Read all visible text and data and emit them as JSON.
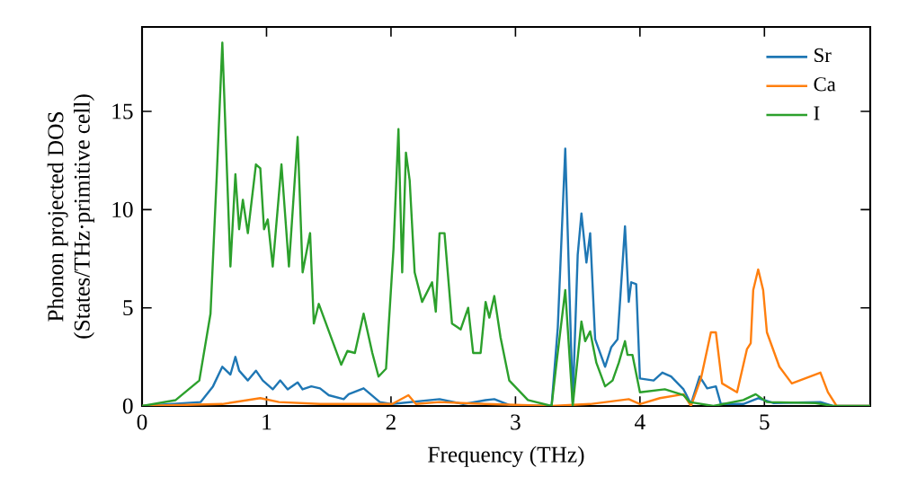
{
  "chart_data": {
    "type": "line",
    "xlabel": "Frequency (THz)",
    "ylabel": "Phonon projected DOS\n(States/THz·primitive cell)",
    "xlim": [
      0,
      5.85
    ],
    "ylim": [
      0,
      19.3
    ],
    "xticks": [
      0,
      1,
      2,
      3,
      4,
      5
    ],
    "yticks": [
      0,
      5,
      10,
      15
    ],
    "legend": "top right",
    "line_style": "solid",
    "series": [
      {
        "name": "Sr",
        "color": "#1f77b4",
        "x": [
          0,
          0.47,
          0.57,
          0.645,
          0.71,
          0.75,
          0.78,
          0.85,
          0.915,
          0.97,
          1.05,
          1.11,
          1.17,
          1.25,
          1.29,
          1.36,
          1.43,
          1.5,
          1.62,
          1.66,
          1.78,
          1.91,
          2.01,
          2.39,
          2.58,
          2.76,
          2.83,
          2.95,
          3.29,
          3.34,
          3.4,
          3.46,
          3.5,
          3.53,
          3.57,
          3.6,
          3.64,
          3.72,
          3.77,
          3.82,
          3.88,
          3.91,
          3.93,
          3.97,
          4.0,
          4.11,
          4.18,
          4.25,
          4.35,
          4.41,
          4.48,
          4.54,
          4.61,
          4.65,
          4.83,
          4.95,
          5.07,
          5.45,
          5.55,
          5.85
        ],
        "values": [
          0,
          0.2,
          1.0,
          2.0,
          1.6,
          2.5,
          1.8,
          1.3,
          1.8,
          1.3,
          0.85,
          1.3,
          0.85,
          1.2,
          0.85,
          1.0,
          0.9,
          0.55,
          0.35,
          0.6,
          0.9,
          0.2,
          0.1,
          0.35,
          0.1,
          0.3,
          0.35,
          0.05,
          0,
          4.0,
          13.1,
          0.2,
          7.7,
          9.8,
          7.3,
          8.8,
          3.4,
          2.0,
          3.0,
          3.4,
          9.15,
          5.3,
          6.3,
          6.2,
          1.4,
          1.3,
          1.7,
          1.5,
          0.85,
          0.1,
          1.5,
          0.9,
          1.0,
          0.1,
          0.1,
          0.4,
          0.15,
          0.2,
          0,
          0
        ]
      },
      {
        "name": "Ca",
        "color": "#ff7f0e",
        "x": [
          0,
          0.645,
          0.95,
          1.1,
          1.43,
          2.01,
          2.14,
          2.2,
          2.39,
          2.76,
          3.29,
          3.6,
          3.91,
          4.0,
          4.16,
          4.35,
          4.41,
          4.49,
          4.57,
          4.61,
          4.66,
          4.78,
          4.86,
          4.89,
          4.91,
          4.95,
          4.99,
          5.02,
          5.12,
          5.22,
          5.45,
          5.51,
          5.58,
          5.85
        ],
        "values": [
          0,
          0.1,
          0.4,
          0.2,
          0.1,
          0.1,
          0.55,
          0.1,
          0.2,
          0.1,
          0,
          0.1,
          0.35,
          0.1,
          0.4,
          0.6,
          0,
          1.4,
          3.75,
          3.75,
          1.15,
          0.7,
          2.9,
          3.2,
          5.9,
          6.95,
          5.9,
          3.75,
          2.0,
          1.15,
          1.7,
          0.7,
          0,
          0
        ]
      },
      {
        "name": "I",
        "color": "#2ca02c",
        "x": [
          0,
          0.27,
          0.46,
          0.55,
          0.6,
          0.645,
          0.71,
          0.75,
          0.78,
          0.81,
          0.85,
          0.915,
          0.95,
          0.98,
          1.01,
          1.05,
          1.12,
          1.18,
          1.25,
          1.29,
          1.35,
          1.38,
          1.42,
          1.6,
          1.65,
          1.71,
          1.78,
          1.85,
          1.9,
          1.96,
          2.02,
          2.06,
          2.09,
          2.12,
          2.15,
          2.19,
          2.25,
          2.33,
          2.36,
          2.39,
          2.43,
          2.49,
          2.56,
          2.62,
          2.66,
          2.72,
          2.76,
          2.79,
          2.83,
          2.88,
          2.95,
          3.1,
          3.29,
          3.33,
          3.4,
          3.46,
          3.53,
          3.56,
          3.6,
          3.65,
          3.72,
          3.78,
          3.83,
          3.88,
          3.9,
          3.94,
          4.0,
          4.2,
          4.35,
          4.4,
          4.59,
          4.83,
          4.93,
          5.02,
          5.41,
          5.55,
          5.85
        ],
        "values": [
          0,
          0.3,
          1.3,
          4.7,
          11.7,
          18.5,
          7.1,
          11.8,
          9.0,
          10.5,
          8.8,
          12.3,
          12.1,
          9.0,
          9.5,
          7.1,
          12.3,
          7.1,
          13.7,
          6.8,
          8.8,
          4.2,
          5.2,
          2.1,
          2.8,
          2.7,
          4.7,
          2.7,
          1.5,
          1.9,
          8.0,
          14.1,
          6.8,
          12.9,
          11.5,
          6.8,
          5.3,
          6.3,
          4.8,
          8.8,
          8.8,
          4.2,
          3.9,
          5.0,
          2.7,
          2.7,
          5.3,
          4.5,
          5.6,
          3.5,
          1.3,
          0.3,
          0,
          2.2,
          5.9,
          0,
          4.3,
          3.3,
          3.8,
          2.2,
          1.0,
          1.3,
          2.2,
          3.3,
          2.6,
          2.6,
          0.7,
          0.85,
          0.55,
          0.2,
          0,
          0.3,
          0.6,
          0.2,
          0.15,
          0,
          0
        ]
      }
    ]
  }
}
